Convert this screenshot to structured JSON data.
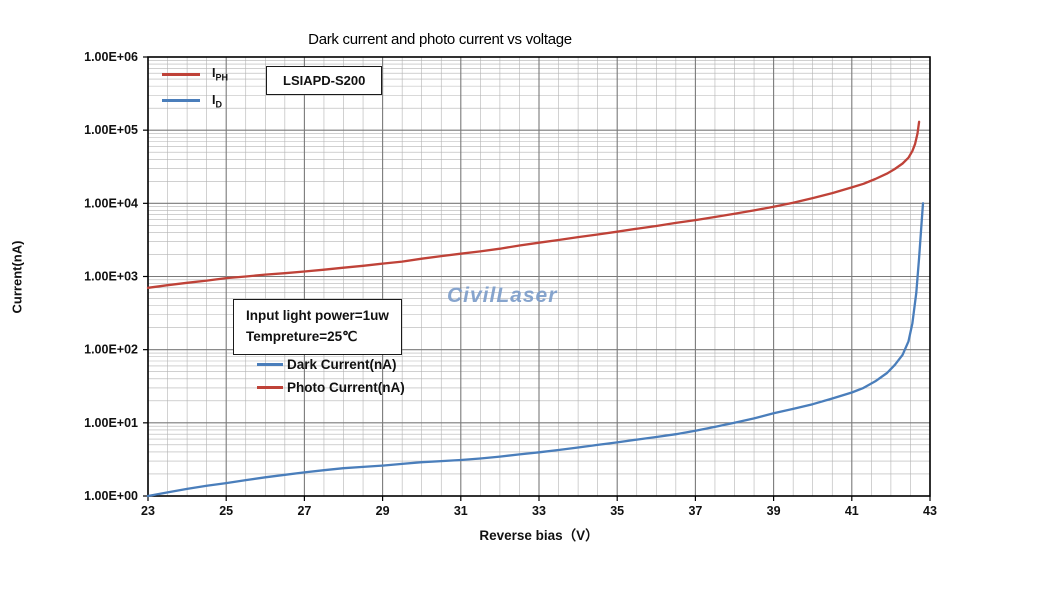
{
  "chart": {
    "model_label": "LSIAPD-S200",
    "watermark": "CivilLaser",
    "watermark_color": "#7b9cc9",
    "annotation_line1": "Input light power=1uw",
    "annotation_line2": "Tempreture=25℃",
    "legend_top": [
      {
        "base": "I",
        "sub": "PH"
      },
      {
        "base": "I",
        "sub": "D"
      }
    ]
  },
  "chart_data": {
    "type": "line",
    "title": "Dark current and photo current vs voltage",
    "xlabel": "Reverse bias（V）",
    "ylabel": "Current(nA)",
    "x_axis": {
      "min": 23,
      "max": 43,
      "tick_step": 2,
      "minor_step": 0.5,
      "ticks": [
        23,
        25,
        27,
        29,
        31,
        33,
        35,
        37,
        39,
        41,
        43
      ]
    },
    "y_axis": {
      "scale": "log",
      "min": 1,
      "max": 1000000,
      "tick_labels": [
        "1.00E+00",
        "1.00E+01",
        "1.00E+02",
        "1.00E+03",
        "1.00E+04",
        "1.00E+05",
        "1.00E+06"
      ]
    },
    "grid": {
      "minor_color": "#b3b3b3",
      "major_color": "#7a7a7a",
      "border_color": "#000000",
      "grid_on": true
    },
    "legend_position": "inside-left",
    "series": [
      {
        "name": "Photo Current(nA)",
        "short": "IPH",
        "color": "#bf4238",
        "points": [
          [
            23,
            700
          ],
          [
            23.5,
            760
          ],
          [
            24,
            820
          ],
          [
            24.5,
            880
          ],
          [
            25,
            950
          ],
          [
            25.5,
            1000
          ],
          [
            26,
            1060
          ],
          [
            26.5,
            1110
          ],
          [
            27,
            1170
          ],
          [
            27.5,
            1240
          ],
          [
            28,
            1320
          ],
          [
            28.5,
            1400
          ],
          [
            29,
            1500
          ],
          [
            29.5,
            1600
          ],
          [
            30,
            1750
          ],
          [
            30.5,
            1900
          ],
          [
            31,
            2050
          ],
          [
            31.5,
            2200
          ],
          [
            32,
            2400
          ],
          [
            32.5,
            2650
          ],
          [
            33,
            2900
          ],
          [
            33.5,
            3150
          ],
          [
            34,
            3450
          ],
          [
            34.5,
            3750
          ],
          [
            35,
            4100
          ],
          [
            35.5,
            4500
          ],
          [
            36,
            4900
          ],
          [
            36.5,
            5400
          ],
          [
            37,
            5900
          ],
          [
            37.5,
            6500
          ],
          [
            38,
            7200
          ],
          [
            38.5,
            8000
          ],
          [
            39,
            9000
          ],
          [
            39.5,
            10200
          ],
          [
            40,
            11800
          ],
          [
            40.5,
            13800
          ],
          [
            41,
            16500
          ],
          [
            41.3,
            18500
          ],
          [
            41.6,
            21500
          ],
          [
            41.9,
            25500
          ],
          [
            42.1,
            29500
          ],
          [
            42.3,
            35000
          ],
          [
            42.45,
            42000
          ],
          [
            42.55,
            52000
          ],
          [
            42.62,
            65000
          ],
          [
            42.68,
            90000
          ],
          [
            42.72,
            130000
          ]
        ]
      },
      {
        "name": "Dark Current(nA)",
        "short": "ID",
        "color": "#4a7ebb",
        "points": [
          [
            23,
            1.0
          ],
          [
            23.5,
            1.12
          ],
          [
            24,
            1.25
          ],
          [
            24.5,
            1.38
          ],
          [
            25,
            1.5
          ],
          [
            25.5,
            1.65
          ],
          [
            26,
            1.8
          ],
          [
            26.5,
            1.95
          ],
          [
            27,
            2.1
          ],
          [
            27.5,
            2.25
          ],
          [
            28,
            2.4
          ],
          [
            28.5,
            2.5
          ],
          [
            29,
            2.6
          ],
          [
            29.5,
            2.75
          ],
          [
            30,
            2.9
          ],
          [
            30.5,
            3.0
          ],
          [
            31,
            3.1
          ],
          [
            31.5,
            3.25
          ],
          [
            32,
            3.45
          ],
          [
            32.5,
            3.7
          ],
          [
            33,
            3.95
          ],
          [
            33.5,
            4.25
          ],
          [
            34,
            4.6
          ],
          [
            34.5,
            5.0
          ],
          [
            35,
            5.4
          ],
          [
            35.5,
            5.9
          ],
          [
            36,
            6.4
          ],
          [
            36.5,
            7.0
          ],
          [
            37,
            7.8
          ],
          [
            37.5,
            8.8
          ],
          [
            38,
            10
          ],
          [
            38.5,
            11.5
          ],
          [
            39,
            13.5
          ],
          [
            39.5,
            15.5
          ],
          [
            40,
            18
          ],
          [
            40.5,
            21.5
          ],
          [
            41,
            26
          ],
          [
            41.3,
            30
          ],
          [
            41.6,
            37
          ],
          [
            41.9,
            48
          ],
          [
            42.1,
            62
          ],
          [
            42.3,
            85
          ],
          [
            42.45,
            130
          ],
          [
            42.55,
            230
          ],
          [
            42.65,
            600
          ],
          [
            42.72,
            1800
          ],
          [
            42.78,
            5000
          ],
          [
            42.82,
            10000
          ]
        ]
      }
    ]
  }
}
